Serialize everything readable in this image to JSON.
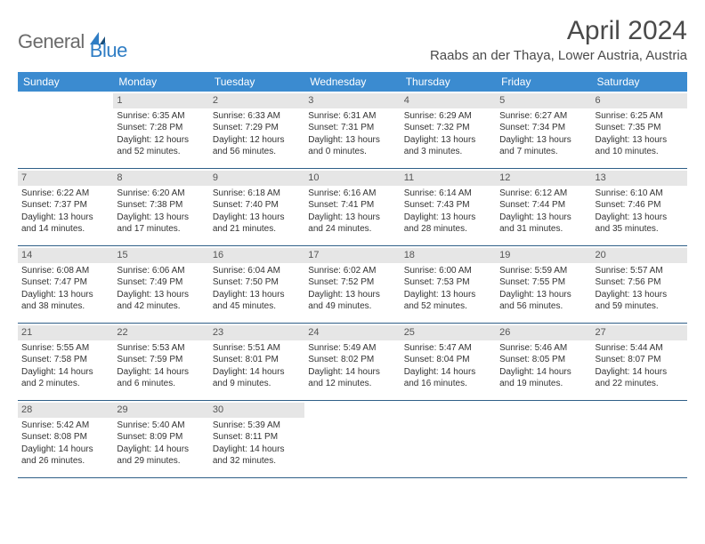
{
  "logo": {
    "general": "General",
    "blue": "Blue"
  },
  "title": "April 2024",
  "location": "Raabs an der Thaya, Lower Austria, Austria",
  "dow": [
    "Sunday",
    "Monday",
    "Tuesday",
    "Wednesday",
    "Thursday",
    "Friday",
    "Saturday"
  ],
  "colors": {
    "header_bg": "#3b8bd0",
    "daynum_bg": "#e6e6e6",
    "rule": "#2f5f88"
  },
  "weeks": [
    [
      {
        "n": "",
        "sr": "",
        "ss": "",
        "dl": ""
      },
      {
        "n": "1",
        "sr": "Sunrise: 6:35 AM",
        "ss": "Sunset: 7:28 PM",
        "dl": "Daylight: 12 hours and 52 minutes."
      },
      {
        "n": "2",
        "sr": "Sunrise: 6:33 AM",
        "ss": "Sunset: 7:29 PM",
        "dl": "Daylight: 12 hours and 56 minutes."
      },
      {
        "n": "3",
        "sr": "Sunrise: 6:31 AM",
        "ss": "Sunset: 7:31 PM",
        "dl": "Daylight: 13 hours and 0 minutes."
      },
      {
        "n": "4",
        "sr": "Sunrise: 6:29 AM",
        "ss": "Sunset: 7:32 PM",
        "dl": "Daylight: 13 hours and 3 minutes."
      },
      {
        "n": "5",
        "sr": "Sunrise: 6:27 AM",
        "ss": "Sunset: 7:34 PM",
        "dl": "Daylight: 13 hours and 7 minutes."
      },
      {
        "n": "6",
        "sr": "Sunrise: 6:25 AM",
        "ss": "Sunset: 7:35 PM",
        "dl": "Daylight: 13 hours and 10 minutes."
      }
    ],
    [
      {
        "n": "7",
        "sr": "Sunrise: 6:22 AM",
        "ss": "Sunset: 7:37 PM",
        "dl": "Daylight: 13 hours and 14 minutes."
      },
      {
        "n": "8",
        "sr": "Sunrise: 6:20 AM",
        "ss": "Sunset: 7:38 PM",
        "dl": "Daylight: 13 hours and 17 minutes."
      },
      {
        "n": "9",
        "sr": "Sunrise: 6:18 AM",
        "ss": "Sunset: 7:40 PM",
        "dl": "Daylight: 13 hours and 21 minutes."
      },
      {
        "n": "10",
        "sr": "Sunrise: 6:16 AM",
        "ss": "Sunset: 7:41 PM",
        "dl": "Daylight: 13 hours and 24 minutes."
      },
      {
        "n": "11",
        "sr": "Sunrise: 6:14 AM",
        "ss": "Sunset: 7:43 PM",
        "dl": "Daylight: 13 hours and 28 minutes."
      },
      {
        "n": "12",
        "sr": "Sunrise: 6:12 AM",
        "ss": "Sunset: 7:44 PM",
        "dl": "Daylight: 13 hours and 31 minutes."
      },
      {
        "n": "13",
        "sr": "Sunrise: 6:10 AM",
        "ss": "Sunset: 7:46 PM",
        "dl": "Daylight: 13 hours and 35 minutes."
      }
    ],
    [
      {
        "n": "14",
        "sr": "Sunrise: 6:08 AM",
        "ss": "Sunset: 7:47 PM",
        "dl": "Daylight: 13 hours and 38 minutes."
      },
      {
        "n": "15",
        "sr": "Sunrise: 6:06 AM",
        "ss": "Sunset: 7:49 PM",
        "dl": "Daylight: 13 hours and 42 minutes."
      },
      {
        "n": "16",
        "sr": "Sunrise: 6:04 AM",
        "ss": "Sunset: 7:50 PM",
        "dl": "Daylight: 13 hours and 45 minutes."
      },
      {
        "n": "17",
        "sr": "Sunrise: 6:02 AM",
        "ss": "Sunset: 7:52 PM",
        "dl": "Daylight: 13 hours and 49 minutes."
      },
      {
        "n": "18",
        "sr": "Sunrise: 6:00 AM",
        "ss": "Sunset: 7:53 PM",
        "dl": "Daylight: 13 hours and 52 minutes."
      },
      {
        "n": "19",
        "sr": "Sunrise: 5:59 AM",
        "ss": "Sunset: 7:55 PM",
        "dl": "Daylight: 13 hours and 56 minutes."
      },
      {
        "n": "20",
        "sr": "Sunrise: 5:57 AM",
        "ss": "Sunset: 7:56 PM",
        "dl": "Daylight: 13 hours and 59 minutes."
      }
    ],
    [
      {
        "n": "21",
        "sr": "Sunrise: 5:55 AM",
        "ss": "Sunset: 7:58 PM",
        "dl": "Daylight: 14 hours and 2 minutes."
      },
      {
        "n": "22",
        "sr": "Sunrise: 5:53 AM",
        "ss": "Sunset: 7:59 PM",
        "dl": "Daylight: 14 hours and 6 minutes."
      },
      {
        "n": "23",
        "sr": "Sunrise: 5:51 AM",
        "ss": "Sunset: 8:01 PM",
        "dl": "Daylight: 14 hours and 9 minutes."
      },
      {
        "n": "24",
        "sr": "Sunrise: 5:49 AM",
        "ss": "Sunset: 8:02 PM",
        "dl": "Daylight: 14 hours and 12 minutes."
      },
      {
        "n": "25",
        "sr": "Sunrise: 5:47 AM",
        "ss": "Sunset: 8:04 PM",
        "dl": "Daylight: 14 hours and 16 minutes."
      },
      {
        "n": "26",
        "sr": "Sunrise: 5:46 AM",
        "ss": "Sunset: 8:05 PM",
        "dl": "Daylight: 14 hours and 19 minutes."
      },
      {
        "n": "27",
        "sr": "Sunrise: 5:44 AM",
        "ss": "Sunset: 8:07 PM",
        "dl": "Daylight: 14 hours and 22 minutes."
      }
    ],
    [
      {
        "n": "28",
        "sr": "Sunrise: 5:42 AM",
        "ss": "Sunset: 8:08 PM",
        "dl": "Daylight: 14 hours and 26 minutes."
      },
      {
        "n": "29",
        "sr": "Sunrise: 5:40 AM",
        "ss": "Sunset: 8:09 PM",
        "dl": "Daylight: 14 hours and 29 minutes."
      },
      {
        "n": "30",
        "sr": "Sunrise: 5:39 AM",
        "ss": "Sunset: 8:11 PM",
        "dl": "Daylight: 14 hours and 32 minutes."
      },
      {
        "n": "",
        "sr": "",
        "ss": "",
        "dl": ""
      },
      {
        "n": "",
        "sr": "",
        "ss": "",
        "dl": ""
      },
      {
        "n": "",
        "sr": "",
        "ss": "",
        "dl": ""
      },
      {
        "n": "",
        "sr": "",
        "ss": "",
        "dl": ""
      }
    ]
  ]
}
